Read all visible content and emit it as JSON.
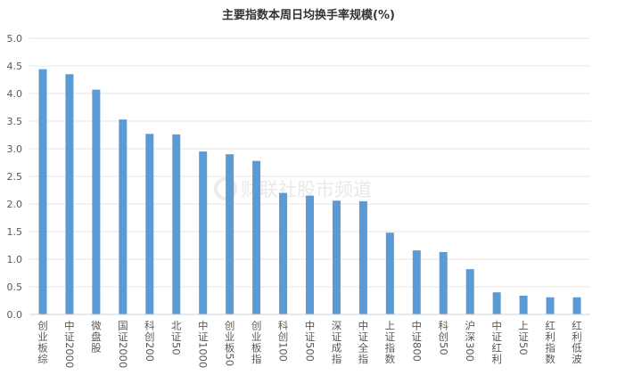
{
  "chart_data": {
    "type": "bar",
    "title": "主要指数本周日均换手率规模(%)",
    "xlabel": "",
    "ylabel": "",
    "ylim": [
      0,
      5.0
    ],
    "yticks": [
      "0.0",
      "0.5",
      "1.0",
      "1.5",
      "2.0",
      "2.5",
      "3.0",
      "3.5",
      "4.0",
      "4.5",
      "5.0"
    ],
    "grid": true,
    "legend": "none",
    "bar_color": "#5b9bd5",
    "categories": [
      "创业板综",
      "中证2000",
      "微盘股",
      "国证2000",
      "科创200",
      "北证50",
      "中证1000",
      "创业板50",
      "创业板指",
      "科创100",
      "中证500",
      "深证成指",
      "中证全指",
      "上证指数",
      "中证800",
      "科创50",
      "沪深300",
      "中证红利",
      "上证50",
      "红利指数",
      "红利低波"
    ],
    "values": [
      4.44,
      4.35,
      4.07,
      3.53,
      3.27,
      3.26,
      2.95,
      2.9,
      2.78,
      2.2,
      2.15,
      2.06,
      2.05,
      1.48,
      1.16,
      1.13,
      0.82,
      0.4,
      0.34,
      0.31,
      0.31
    ]
  },
  "watermark": {
    "text": "财联社股市频道"
  }
}
